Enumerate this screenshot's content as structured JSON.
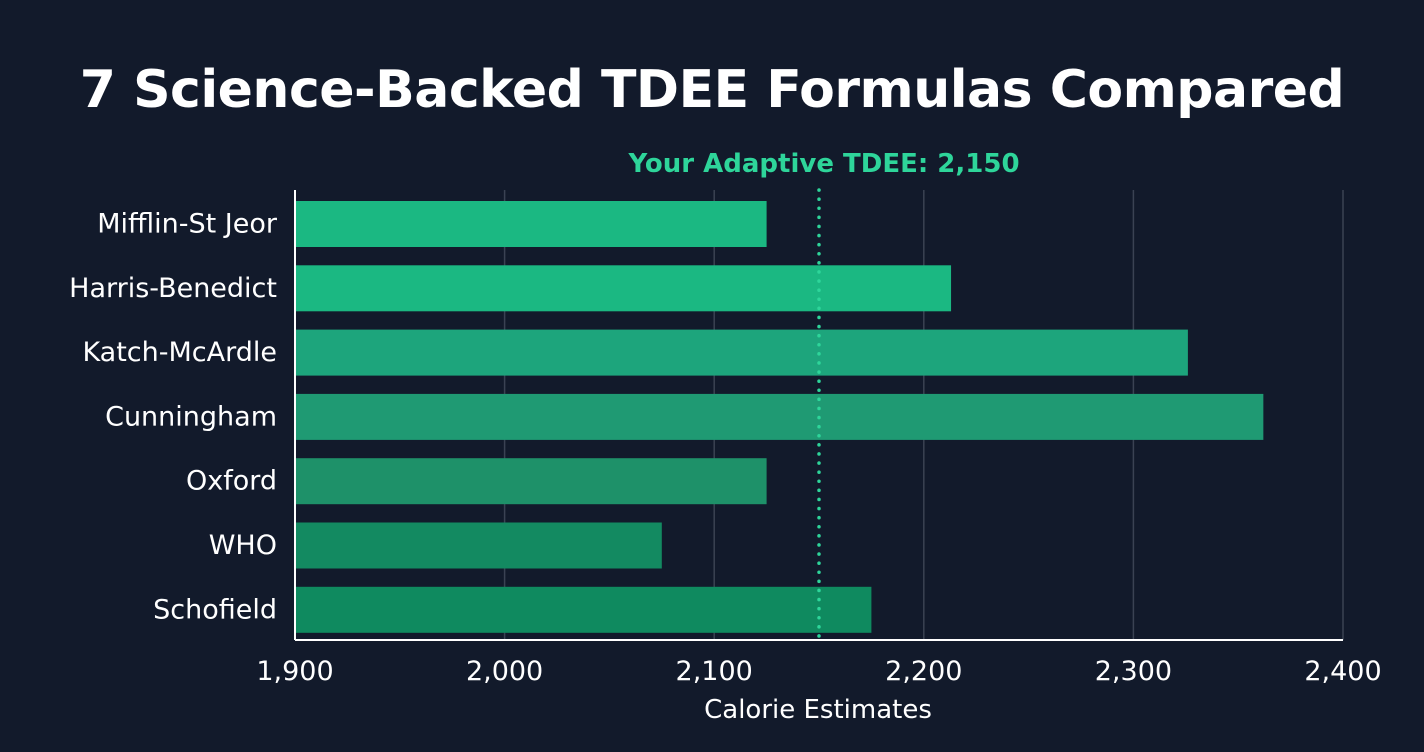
{
  "chart_data": {
    "type": "bar",
    "orientation": "horizontal",
    "title": "7 Science-Backed TDEE Formulas Compared",
    "xlabel": "Calorie Estimates",
    "ylabel": "",
    "categories": [
      "Mifflin-St Jeor",
      "Harris-Benedict",
      "Katch-McArdle",
      "Cunningham",
      "Oxford",
      "WHO",
      "Schofield"
    ],
    "values": [
      2125,
      2213,
      2326,
      2362,
      2125,
      2075,
      2175
    ],
    "xlim": [
      1900,
      2400
    ],
    "xticks": [
      1900,
      2000,
      2100,
      2200,
      2300,
      2400
    ],
    "xtick_labels": [
      "1,900",
      "2,000",
      "2,100",
      "2,200",
      "2,300",
      "2,400"
    ],
    "grid": "vertical",
    "legend": "none",
    "reference_line": {
      "value": 2150,
      "label": "Your Adaptive TDEE: 2,150",
      "style": "dotted",
      "color": "#2ed59a"
    },
    "colors": [
      "#1bb882",
      "#1bb882",
      "#1da57c",
      "#1f9a73",
      "#1e9169",
      "#138a61",
      "#0f8a5f"
    ],
    "background": "#121a2b"
  }
}
